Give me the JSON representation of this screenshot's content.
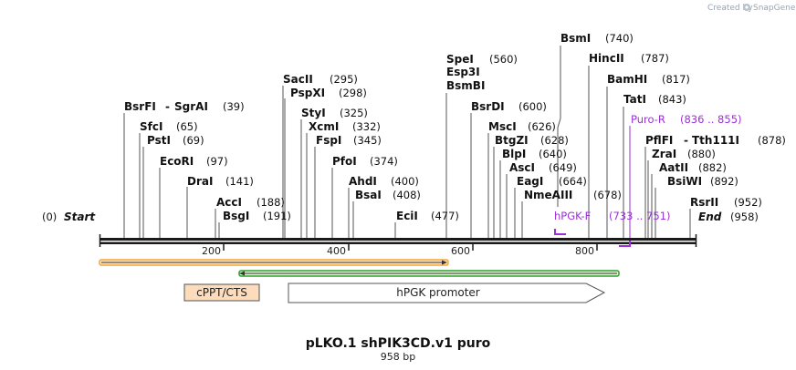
{
  "credit": {
    "created_by": "Created by",
    "app": "SnapGene"
  },
  "map": {
    "start_pos": "(0)",
    "start_label": "Start",
    "end_label": "End",
    "end_pos": "(958)",
    "ticks": [
      "200",
      "400",
      "600",
      "800"
    ]
  },
  "sites": [
    {
      "name": "BsrFI",
      "pos": "(39)",
      "name2": "SgrAI"
    },
    {
      "name": "SfcI",
      "pos": "(65)"
    },
    {
      "name": "PstI",
      "pos": "(69)"
    },
    {
      "name": "EcoRI",
      "pos": "(97)"
    },
    {
      "name": "DraI",
      "pos": "(141)"
    },
    {
      "name": "AccI",
      "pos": "(188)"
    },
    {
      "name": "BsgI",
      "pos": "(191)"
    },
    {
      "name": "SacII",
      "pos": "(295)"
    },
    {
      "name": "PspXI",
      "pos": "(298)"
    },
    {
      "name": "StyI",
      "pos": "(325)"
    },
    {
      "name": "XcmI",
      "pos": "(332)"
    },
    {
      "name": "FspI",
      "pos": "(345)"
    },
    {
      "name": "PfoI",
      "pos": "(374)"
    },
    {
      "name": "AhdI",
      "pos": "(400)"
    },
    {
      "name": "BsaI",
      "pos": "(408)"
    },
    {
      "name": "EciI",
      "pos": "(477)"
    },
    {
      "name": "SpeI",
      "pos": "(560)"
    },
    {
      "name": "Esp3I"
    },
    {
      "name": "BsmBI"
    },
    {
      "name": "BsrDI",
      "pos": "(600)"
    },
    {
      "name": "MscI",
      "pos": "(626)"
    },
    {
      "name": "BtgZI",
      "pos": "(628)"
    },
    {
      "name": "BlpI",
      "pos": "(640)"
    },
    {
      "name": "AscI",
      "pos": "(649)"
    },
    {
      "name": "EagI",
      "pos": "(664)"
    },
    {
      "name": "NmeAIII",
      "pos": "(678)"
    },
    {
      "name": "BsmI",
      "pos": "(740)"
    },
    {
      "name": "HincII",
      "pos": "(787)"
    },
    {
      "name": "BamHI",
      "pos": "(817)"
    },
    {
      "name": "TatI",
      "pos": "(843)"
    },
    {
      "name": "PflFI",
      "pos": "(878)",
      "name2": "Tth111I"
    },
    {
      "name": "ZraI",
      "pos": "(880)"
    },
    {
      "name": "AatII",
      "pos": "(882)"
    },
    {
      "name": "BsiWI",
      "pos": "(892)"
    },
    {
      "name": "RsrII",
      "pos": "(952)"
    }
  ],
  "primers": [
    {
      "name": "Puro-R",
      "range": "(836 .. 855)"
    },
    {
      "name": "hPGK-F",
      "range": "(733 .. 751)"
    }
  ],
  "features": [
    {
      "name": "cPPT/CTS"
    },
    {
      "name": "hPGK promoter"
    }
  ],
  "title": {
    "name": "pLKO.1 shPIK3CD.v1 puro",
    "length": "958 bp"
  },
  "colors": {
    "primer": "#9b30d9",
    "orange_bar": "#f5a733",
    "green_bar": "#2ea12e",
    "cppt_fill": "#fcdcbc",
    "backbone": "#1a1a1a"
  }
}
